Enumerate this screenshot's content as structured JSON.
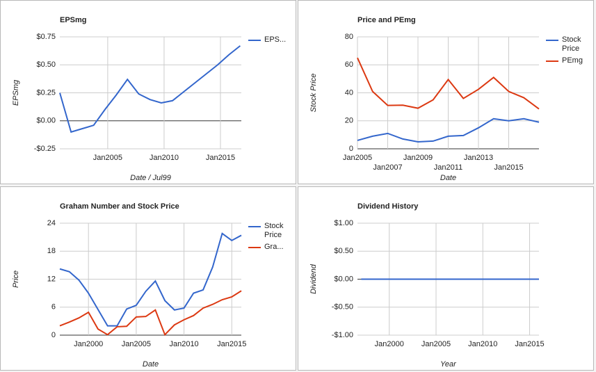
{
  "chart_data": [
    {
      "type": "line",
      "title": "EPSmg",
      "xlabel": "Date / Jul99",
      "ylabel": "EPSmg",
      "x": [
        2000.75,
        2001.75,
        2002.75,
        2003.75,
        2004.75,
        2005.75,
        2006.75,
        2007.75,
        2008.75,
        2009.75,
        2010.75,
        2011.75,
        2012.75,
        2013.75,
        2014.75,
        2015.75,
        2016.75
      ],
      "series": [
        {
          "name": "EPS...",
          "color": "#3366cc",
          "values": [
            0.25,
            -0.1,
            -0.07,
            -0.04,
            0.1,
            0.23,
            0.37,
            0.24,
            0.19,
            0.16,
            0.18,
            0.26,
            0.34,
            0.42,
            0.5,
            0.59,
            0.67
          ]
        }
      ],
      "xlim": [
        2000.75,
        2016.85
      ],
      "ylim": [
        -0.25,
        0.75
      ],
      "xticks": [
        {
          "value": 2005,
          "label": "Jan2005"
        },
        {
          "value": 2010,
          "label": "Jan2010"
        },
        {
          "value": 2015,
          "label": "Jan2015"
        }
      ],
      "yticks": [
        {
          "value": 0.75,
          "label": "$0.75"
        },
        {
          "value": 0.5,
          "label": "$0.50"
        },
        {
          "value": 0.25,
          "label": "$0.25"
        },
        {
          "value": 0,
          "label": "$0.00"
        },
        {
          "value": -0.25,
          "label": "-$0.25"
        }
      ],
      "grid": true
    },
    {
      "type": "line",
      "title": "Price and PEmg",
      "xlabel": "Date",
      "ylabel": "Stock Price",
      "x": [
        2005,
        2006,
        2007,
        2008,
        2009,
        2010,
        2011,
        2012,
        2013,
        2014,
        2015,
        2016,
        2017
      ],
      "series": [
        {
          "name": "Stock Price",
          "color": "#3366cc",
          "values": [
            6,
            9,
            11,
            7,
            5,
            5.5,
            9,
            9.5,
            15,
            21.5,
            20,
            21.5,
            19
          ]
        },
        {
          "name": "PEmg",
          "color": "#dc3912",
          "values": [
            65,
            41,
            31,
            31.2,
            29,
            35,
            49.5,
            36,
            42.5,
            51,
            41,
            36.5,
            28.5
          ]
        }
      ],
      "xlim": [
        2005,
        2017
      ],
      "ylim": [
        0,
        80
      ],
      "xticks": [
        {
          "value": 2005,
          "label": "Jan2005"
        },
        {
          "value": 2007,
          "label": "Jan2007"
        },
        {
          "value": 2009,
          "label": "Jan2009"
        },
        {
          "value": 2011,
          "label": "Jan2011"
        },
        {
          "value": 2013,
          "label": "Jan2013"
        },
        {
          "value": 2015,
          "label": "Jan2015"
        }
      ],
      "yticks": [
        0,
        20,
        40,
        60,
        80
      ],
      "grid": true
    },
    {
      "type": "line",
      "title": "Graham Number and Stock Price",
      "xlabel": "Date",
      "ylabel": "Price",
      "x": [
        1997,
        1998,
        1999,
        2000,
        2001,
        2002,
        2003,
        2004,
        2005,
        2006,
        2007,
        2008,
        2009,
        2010,
        2011,
        2012,
        2013,
        2014,
        2015,
        2016
      ],
      "series": [
        {
          "name": "Stock Price",
          "color": "#3366cc",
          "values": [
            14.2,
            13.6,
            11.8,
            9,
            5.5,
            2,
            2,
            5.6,
            6.4,
            9.4,
            11.6,
            7.4,
            5.4,
            5.8,
            9,
            9.7,
            14.6,
            21.8,
            20.3,
            21.4
          ]
        },
        {
          "name": "Gra...",
          "color": "#dc3912",
          "values": [
            2,
            2.8,
            3.7,
            4.9,
            1.3,
            0.1,
            1.8,
            1.9,
            3.9,
            4,
            5.4,
            0.1,
            2.2,
            3.3,
            4.2,
            5.8,
            6.6,
            7.6,
            8.2,
            9.5
          ]
        }
      ],
      "xlim": [
        1997,
        2016
      ],
      "ylim": [
        0,
        24
      ],
      "xticks": [
        {
          "value": 2000,
          "label": "Jan2000"
        },
        {
          "value": 2005,
          "label": "Jan2005"
        },
        {
          "value": 2010,
          "label": "Jan2010"
        },
        {
          "value": 2015,
          "label": "Jan2015"
        }
      ],
      "yticks": [
        0,
        6,
        12,
        18,
        24
      ],
      "grid": true
    },
    {
      "type": "line",
      "title": "Dividend History",
      "xlabel": "Year",
      "ylabel": "Dividend",
      "x": [
        1997,
        1998,
        1999,
        2000,
        2001,
        2002,
        2003,
        2004,
        2005,
        2006,
        2007,
        2008,
        2009,
        2010,
        2011,
        2012,
        2013,
        2014,
        2015,
        2016
      ],
      "series": [
        {
          "name": null,
          "color": "#3366cc",
          "values": [
            0,
            0,
            0,
            0,
            0,
            0,
            0,
            0,
            0,
            0,
            0,
            0,
            0,
            0,
            0,
            0,
            0,
            0,
            0,
            0
          ]
        }
      ],
      "xlim": [
        1996.6,
        2016
      ],
      "ylim": [
        -1,
        1
      ],
      "xticks": [
        {
          "value": 2000,
          "label": "Jan2000"
        },
        {
          "value": 2005,
          "label": "Jan2005"
        },
        {
          "value": 2010,
          "label": "Jan2010"
        },
        {
          "value": 2015,
          "label": "Jan2015"
        }
      ],
      "yticks": [
        {
          "value": 1,
          "label": "$1.00"
        },
        {
          "value": 0.5,
          "label": "$0.50"
        },
        {
          "value": 0,
          "label": "$0.00"
        },
        {
          "value": -0.5,
          "label": "-$0.50"
        },
        {
          "value": -1,
          "label": "-$1.00"
        }
      ],
      "grid": true
    }
  ]
}
